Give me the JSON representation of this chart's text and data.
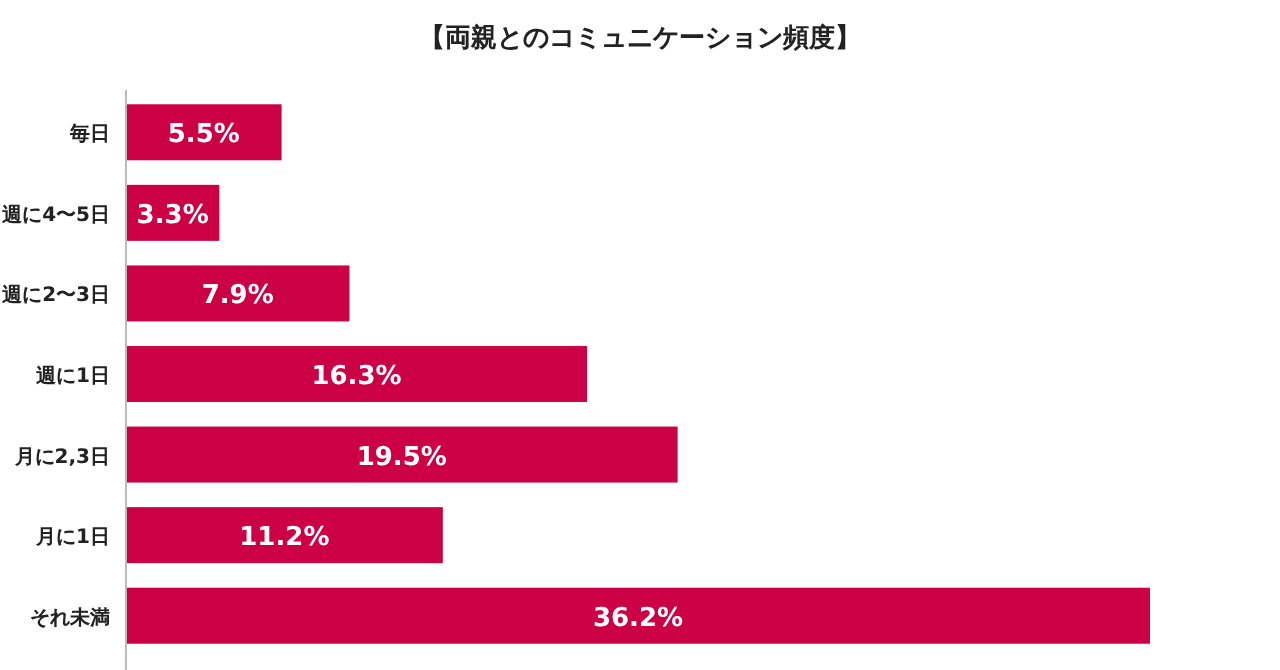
{
  "chart_data": {
    "type": "bar",
    "orientation": "horizontal",
    "title": "【両親とのコミュニケーション頻度】",
    "categories": [
      "毎日",
      "週に4〜5日",
      "週に2〜3日",
      "週に1日",
      "月に2,3日",
      "月に1日",
      "それ未満"
    ],
    "values": [
      5.5,
      3.3,
      7.9,
      16.3,
      19.5,
      11.2,
      36.2
    ],
    "value_labels": [
      "5.5%",
      "3.3%",
      "7.9%",
      "16.3%",
      "19.5%",
      "11.2%",
      "36.2%"
    ],
    "color": "#cc0044"
  }
}
